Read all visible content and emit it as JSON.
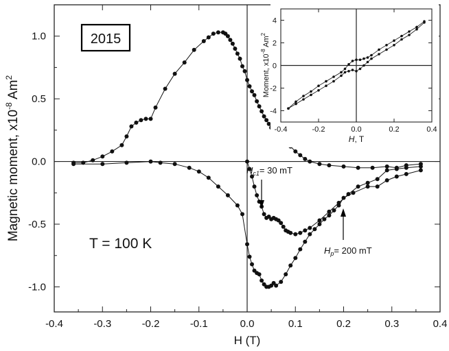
{
  "chart_data": [
    {
      "type": "scatter",
      "title": "",
      "xlabel": "H (T)",
      "ylabel": "Magnetic moment, x10",
      "ylabel_exp": "-8",
      "ylabel_unit": " Am",
      "ylabel_unit_exp": "2",
      "xlim": [
        -0.4,
        0.4
      ],
      "ylim": [
        -1.2,
        1.25
      ],
      "xticks": [
        -0.4,
        -0.3,
        -0.2,
        -0.1,
        0.0,
        0.1,
        0.2,
        0.3,
        0.4
      ],
      "xtick_labels": [
        "-0.4",
        "-0.3",
        "-0.2",
        "-0.1",
        "0.0",
        "0.1",
        "0.2",
        "0.3",
        "0.4"
      ],
      "yticks": [
        -1.0,
        -0.5,
        0.0,
        0.5,
        1.0
      ],
      "ytick_labels": [
        "-1.0",
        "-0.5",
        "0.0",
        "0.5",
        "1.0"
      ],
      "grid": false,
      "annotations": {
        "year": "2015",
        "temperature": "T = 100 K",
        "hc1_symbol": "H",
        "hc1_sub": "c1",
        "hc1_value": "= 30 mT",
        "hp_symbol": "H",
        "hp_sub": "p",
        "hp_value": "= 200 mT"
      },
      "series": [
        {
          "values": [
            [
              -0.36,
              -0.01
            ],
            [
              -0.34,
              -0.01
            ],
            [
              -0.32,
              0.01
            ],
            [
              -0.3,
              0.04
            ],
            [
              -0.28,
              0.08
            ],
            [
              -0.26,
              0.13
            ],
            [
              -0.25,
              0.2
            ],
            [
              -0.24,
              0.28
            ],
            [
              -0.23,
              0.31
            ],
            [
              -0.22,
              0.33
            ],
            [
              -0.21,
              0.34
            ],
            [
              -0.2,
              0.34
            ],
            [
              -0.19,
              0.43
            ],
            [
              -0.17,
              0.58
            ],
            [
              -0.15,
              0.7
            ],
            [
              -0.13,
              0.79
            ],
            [
              -0.11,
              0.89
            ],
            [
              -0.09,
              0.96
            ],
            [
              -0.08,
              0.99
            ],
            [
              -0.07,
              1.02
            ],
            [
              -0.06,
              1.03
            ],
            [
              -0.05,
              1.03
            ],
            [
              -0.045,
              1.02
            ],
            [
              -0.04,
              1.0
            ],
            [
              -0.035,
              0.97
            ],
            [
              -0.03,
              0.94
            ],
            [
              -0.025,
              0.9
            ],
            [
              -0.02,
              0.86
            ],
            [
              -0.015,
              0.82
            ],
            [
              -0.01,
              0.76
            ],
            [
              -0.005,
              0.72
            ],
            [
              0.0,
              0.65
            ],
            [
              0.005,
              0.6
            ],
            [
              0.01,
              0.56
            ],
            [
              0.015,
              0.53
            ],
            [
              0.02,
              0.48
            ],
            [
              0.025,
              0.44
            ],
            [
              0.03,
              0.4
            ],
            [
              0.035,
              0.36
            ],
            [
              0.04,
              0.33
            ],
            [
              0.045,
              0.3
            ],
            [
              0.05,
              0.27
            ],
            [
              0.055,
              0.24
            ],
            [
              0.06,
              0.22
            ],
            [
              0.07,
              0.19
            ],
            [
              0.08,
              0.15
            ],
            [
              0.09,
              0.12
            ],
            [
              0.1,
              0.08
            ],
            [
              0.11,
              0.05
            ],
            [
              0.12,
              0.02
            ],
            [
              0.13,
              0.0
            ],
            [
              0.15,
              -0.02
            ],
            [
              0.17,
              -0.03
            ],
            [
              0.2,
              -0.04
            ],
            [
              0.23,
              -0.05
            ],
            [
              0.26,
              -0.05
            ],
            [
              0.29,
              -0.04
            ],
            [
              0.31,
              -0.05
            ],
            [
              0.33,
              -0.03
            ],
            [
              0.36,
              -0.02
            ]
          ]
        },
        {
          "values": [
            [
              -0.36,
              -0.02
            ],
            [
              -0.3,
              -0.02
            ],
            [
              -0.25,
              -0.01
            ],
            [
              -0.2,
              0.0
            ],
            [
              -0.18,
              -0.01
            ],
            [
              -0.15,
              -0.02
            ],
            [
              -0.12,
              -0.05
            ],
            [
              -0.1,
              -0.08
            ],
            [
              -0.08,
              -0.13
            ],
            [
              -0.06,
              -0.2
            ],
            [
              -0.04,
              -0.27
            ],
            [
              -0.02,
              -0.35
            ],
            [
              -0.01,
              -0.42
            ],
            [
              0.0,
              -0.66
            ],
            [
              0.005,
              -0.76
            ],
            [
              0.01,
              -0.82
            ],
            [
              0.015,
              -0.87
            ],
            [
              0.02,
              -0.89
            ],
            [
              0.025,
              -0.9
            ],
            [
              0.03,
              -0.95
            ],
            [
              0.035,
              -0.98
            ],
            [
              0.04,
              -1.0
            ],
            [
              0.045,
              -1.0
            ],
            [
              0.05,
              -0.99
            ],
            [
              0.055,
              -0.97
            ],
            [
              0.06,
              -0.99
            ],
            [
              0.07,
              -0.96
            ],
            [
              0.08,
              -0.9
            ],
            [
              0.09,
              -0.83
            ],
            [
              0.1,
              -0.77
            ],
            [
              0.11,
              -0.7
            ],
            [
              0.12,
              -0.64
            ],
            [
              0.13,
              -0.58
            ],
            [
              0.14,
              -0.54
            ],
            [
              0.15,
              -0.5
            ],
            [
              0.16,
              -0.46
            ],
            [
              0.17,
              -0.43
            ],
            [
              0.18,
              -0.39
            ],
            [
              0.19,
              -0.35
            ],
            [
              0.2,
              -0.29
            ],
            [
              0.22,
              -0.25
            ],
            [
              0.25,
              -0.2
            ],
            [
              0.27,
              -0.2
            ],
            [
              0.29,
              -0.15
            ],
            [
              0.31,
              -0.12
            ],
            [
              0.33,
              -0.1
            ],
            [
              0.36,
              -0.07
            ]
          ]
        },
        {
          "values": [
            [
              0.0,
              0.0
            ],
            [
              0.005,
              -0.06
            ],
            [
              0.01,
              -0.12
            ],
            [
              0.015,
              -0.2
            ],
            [
              0.02,
              -0.27
            ],
            [
              0.025,
              -0.32
            ],
            [
              0.03,
              -0.36
            ],
            [
              0.035,
              -0.42
            ],
            [
              0.04,
              -0.45
            ],
            [
              0.045,
              -0.44
            ],
            [
              0.05,
              -0.46
            ],
            [
              0.055,
              -0.45
            ],
            [
              0.06,
              -0.46
            ],
            [
              0.065,
              -0.47
            ],
            [
              0.07,
              -0.49
            ],
            [
              0.075,
              -0.52
            ],
            [
              0.08,
              -0.55
            ],
            [
              0.085,
              -0.56
            ],
            [
              0.09,
              -0.57
            ],
            [
              0.1,
              -0.58
            ],
            [
              0.11,
              -0.57
            ],
            [
              0.12,
              -0.55
            ],
            [
              0.13,
              -0.53
            ],
            [
              0.15,
              -0.47
            ],
            [
              0.17,
              -0.4
            ],
            [
              0.19,
              -0.33
            ],
            [
              0.21,
              -0.26
            ],
            [
              0.23,
              -0.2
            ],
            [
              0.25,
              -0.17
            ],
            [
              0.27,
              -0.14
            ],
            [
              0.29,
              -0.07
            ],
            [
              0.31,
              -0.06
            ],
            [
              0.33,
              -0.05
            ],
            [
              0.36,
              -0.04
            ]
          ]
        }
      ]
    },
    {
      "type": "scatter",
      "title": "",
      "xlabel_symbol": "H",
      "xlabel_unit": ", T",
      "ylabel": "Moment, x10",
      "ylabel_exp": "-8",
      "ylabel_unit": " Am",
      "ylabel_unit_exp": "2",
      "xlim": [
        -0.4,
        0.4
      ],
      "ylim": [
        -5,
        5
      ],
      "xticks": [
        -0.4,
        -0.2,
        0.0,
        0.2,
        0.4
      ],
      "xtick_labels": [
        "-0.4",
        "-0.2",
        "0.0",
        "0.2",
        "0.4"
      ],
      "yticks": [
        -4,
        -2,
        0,
        2,
        4
      ],
      "ytick_labels": [
        "-4",
        "-2",
        "0",
        "2",
        "4"
      ],
      "grid": false,
      "series": [
        {
          "values": [
            [
              -0.36,
              -3.8
            ],
            [
              -0.32,
              -3.4
            ],
            [
              -0.28,
              -3.0
            ],
            [
              -0.24,
              -2.6
            ],
            [
              -0.2,
              -2.2
            ],
            [
              -0.16,
              -1.8
            ],
            [
              -0.12,
              -1.4
            ],
            [
              -0.08,
              -0.9
            ],
            [
              -0.06,
              -0.6
            ],
            [
              -0.04,
              -0.5
            ],
            [
              -0.02,
              -0.4
            ],
            [
              0.0,
              -0.5
            ],
            [
              0.02,
              -0.3
            ],
            [
              0.04,
              0.0
            ],
            [
              0.06,
              0.3
            ],
            [
              0.08,
              0.6
            ],
            [
              0.12,
              1.0
            ],
            [
              0.16,
              1.4
            ],
            [
              0.2,
              1.8
            ],
            [
              0.24,
              2.3
            ],
            [
              0.28,
              2.7
            ],
            [
              0.32,
              3.2
            ],
            [
              0.36,
              3.8
            ]
          ]
        },
        {
          "values": [
            [
              0.36,
              3.9
            ],
            [
              0.32,
              3.4
            ],
            [
              0.28,
              3.0
            ],
            [
              0.24,
              2.6
            ],
            [
              0.2,
              2.2
            ],
            [
              0.16,
              1.8
            ],
            [
              0.12,
              1.4
            ],
            [
              0.08,
              0.9
            ],
            [
              0.06,
              0.7
            ],
            [
              0.04,
              0.6
            ],
            [
              0.02,
              0.5
            ],
            [
              0.0,
              0.5
            ],
            [
              -0.02,
              0.4
            ],
            [
              -0.04,
              0.1
            ],
            [
              -0.06,
              -0.3
            ],
            [
              -0.08,
              -0.6
            ],
            [
              -0.12,
              -1.0
            ],
            [
              -0.16,
              -1.4
            ],
            [
              -0.2,
              -1.8
            ],
            [
              -0.24,
              -2.3
            ],
            [
              -0.28,
              -2.7
            ],
            [
              -0.32,
              -3.2
            ],
            [
              -0.36,
              -3.8
            ]
          ]
        }
      ]
    }
  ]
}
